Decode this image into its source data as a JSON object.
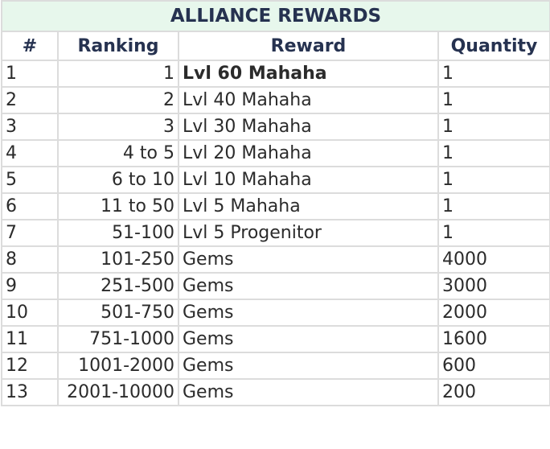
{
  "title": "ALLIANCE REWARDS",
  "headers": [
    "#",
    "Ranking",
    "Reward",
    "Quantity"
  ],
  "rows": [
    {
      "num": "1",
      "ranking": "1",
      "reward": "Lvl 60 Mahaha",
      "quantity": "1"
    },
    {
      "num": "2",
      "ranking": "2",
      "reward": "Lvl 40 Mahaha",
      "quantity": "1"
    },
    {
      "num": "3",
      "ranking": "3",
      "reward": "Lvl 30 Mahaha",
      "quantity": "1"
    },
    {
      "num": "4",
      "ranking": "4 to 5",
      "reward": "Lvl 20 Mahaha",
      "quantity": "1"
    },
    {
      "num": "5",
      "ranking": "6 to 10",
      "reward": "Lvl 10 Mahaha",
      "quantity": "1"
    },
    {
      "num": "6",
      "ranking": "11 to 50",
      "reward": "Lvl 5 Mahaha",
      "quantity": "1"
    },
    {
      "num": "7",
      "ranking": "51-100",
      "reward": "Lvl 5 Progenitor",
      "quantity": "1"
    },
    {
      "num": "8",
      "ranking": "101-250",
      "reward": "Gems",
      "quantity": "4000"
    },
    {
      "num": "9",
      "ranking": "251-500",
      "reward": "Gems",
      "quantity": "3000"
    },
    {
      "num": "10",
      "ranking": "501-750",
      "reward": "Gems",
      "quantity": "2000"
    },
    {
      "num": "11",
      "ranking": "751-1000",
      "reward": "Gems",
      "quantity": "1600"
    },
    {
      "num": "12",
      "ranking": "1001-2000",
      "reward": "Gems",
      "quantity": "600"
    },
    {
      "num": "13",
      "ranking": "2001-10000",
      "reward": "Gems",
      "quantity": "200"
    }
  ],
  "colors": {
    "title_background": "#e7f7ec",
    "header_text": "#263250",
    "grid": "#dcdcdc"
  }
}
